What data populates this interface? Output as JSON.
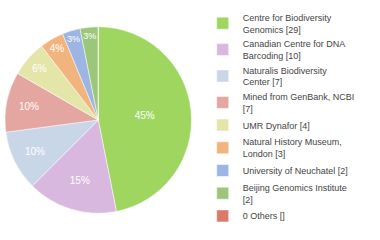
{
  "chart_data": {
    "type": "pie",
    "categories": [
      "Centre for Biodiversity Genomics [29]",
      "Canadian Centre for DNA Barcoding [10]",
      "Naturalis Biodiversity Center [7]",
      "Mined from GenBank, NCBI [7]",
      "UMR Dynafor [4]",
      "Natural History Museum, London [3]",
      "University of Neuchatel [2]",
      "Beijing Genomics Institute [2]",
      "0 Others []"
    ],
    "values": [
      45,
      15,
      10,
      10,
      6,
      4,
      3,
      3,
      0
    ],
    "value_labels": [
      "45%",
      "15%",
      "10%",
      "10%",
      "6%",
      "4%",
      "3%",
      "3%",
      null
    ],
    "colors": [
      "#9ed65f",
      "#d9b8e0",
      "#c9d6e8",
      "#e3a6a0",
      "#e3e6a8",
      "#f2b47e",
      "#9cb5e3",
      "#9cc77a",
      "#d97b68"
    ],
    "data_labels": true,
    "legend": "right"
  }
}
